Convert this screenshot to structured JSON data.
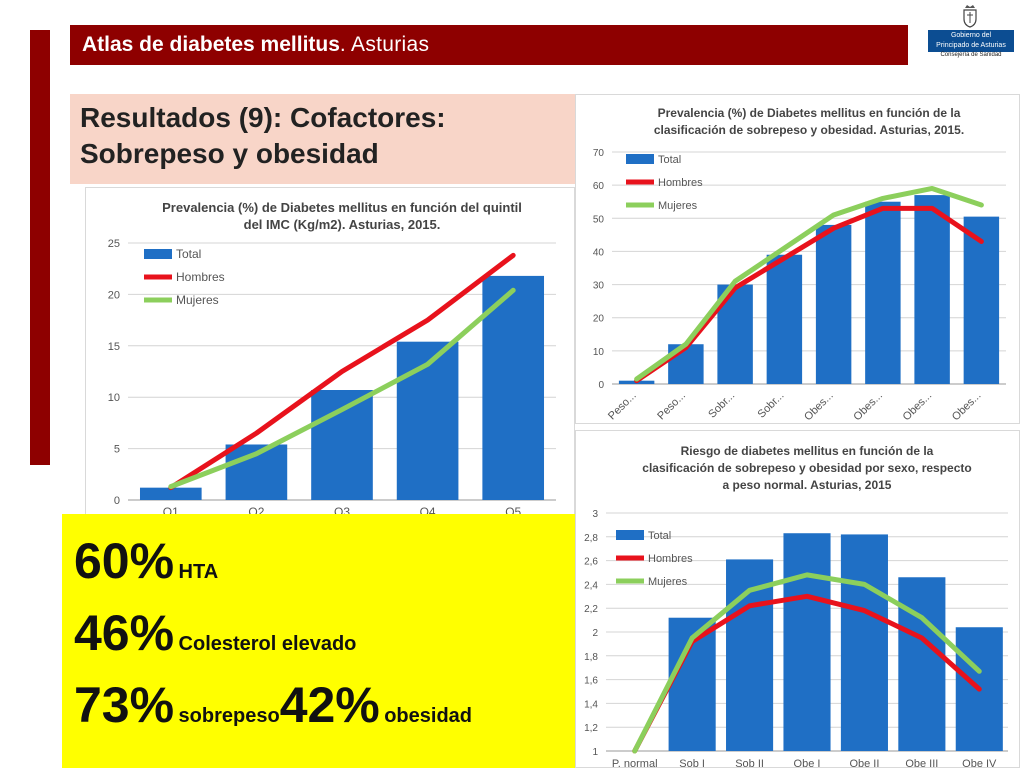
{
  "header": {
    "title_bold": "Atlas de diabetes mellitus",
    "title_rest": ". Asturias"
  },
  "logo": {
    "line1": "Gobierno del",
    "line2": "Principado de Asturias",
    "line3": "Consejería de Sanidad",
    "shield_icon": "crown-shield-icon"
  },
  "slide_title": {
    "line1": "Resultados (9): Cofactores:",
    "line2": "Sobrepeso y obesidad"
  },
  "colors": {
    "brand_red": "#8e0000",
    "total_bar": "#1f6fc5",
    "hombres_line": "#e8121c",
    "mujeres_line": "#8ccf5c",
    "highlight": "#ffff00",
    "title_bg": "#f8d5c8"
  },
  "stats": {
    "row1": {
      "value": "60%",
      "label": "HTA"
    },
    "row2": {
      "value": "46%",
      "label": "Colesterol elevado"
    },
    "row3": {
      "value": "73%",
      "label": "sobrepeso",
      "value2": "42%",
      "label2": "obesidad"
    }
  },
  "chart_data": [
    {
      "type": "bar",
      "title": "Prevalencia (%) de Diabetes mellitus en función del quintil del IMC (Kg/m2). Asturias, 2015.",
      "categories": [
        "Q1",
        "Q2",
        "Q3",
        "Q4",
        "Q5"
      ],
      "ylim": [
        0,
        25
      ],
      "yticks": [
        0,
        5,
        10,
        15,
        20,
        25
      ],
      "legend_position": "top-left",
      "grid": true,
      "series": [
        {
          "name": "Total",
          "type": "bar",
          "values": [
            1.2,
            5.4,
            10.7,
            15.4,
            21.8
          ]
        },
        {
          "name": "Hombres",
          "type": "line",
          "values": [
            1.2,
            6.5,
            12.5,
            17.5,
            23.8
          ]
        },
        {
          "name": "Mujeres",
          "type": "line",
          "values": [
            1.3,
            4.5,
            8.8,
            13.2,
            20.4
          ]
        }
      ]
    },
    {
      "type": "bar",
      "title": "Prevalencia (%) de Diabetes mellitus en función de la clasificación de sobrepeso y obesidad. Asturias, 2015.",
      "categories": [
        "Peso...",
        "Peso...",
        "Sobr...",
        "Sobr...",
        "Obes...",
        "Obes...",
        "Obes...",
        "Obes..."
      ],
      "ylim": [
        0,
        70
      ],
      "yticks": [
        0,
        10,
        20,
        30,
        40,
        50,
        60,
        70
      ],
      "legend_position": "top-left",
      "grid": true,
      "series": [
        {
          "name": "Total",
          "type": "bar",
          "values": [
            1,
            12,
            30,
            39,
            48,
            55,
            57,
            50.5
          ]
        },
        {
          "name": "Hombres",
          "type": "line",
          "values": [
            1,
            11,
            29,
            38,
            47,
            53,
            53,
            43
          ]
        },
        {
          "name": "Mujeres",
          "type": "line",
          "values": [
            1.5,
            12,
            31,
            41,
            51,
            56,
            59,
            54
          ]
        }
      ]
    },
    {
      "type": "bar",
      "title": "Riesgo de diabetes mellitus en función de la clasificación de sobrepeso y obesidad por sexo, respecto a peso normal. Asturias, 2015",
      "categories": [
        "P. normal",
        "Sob I",
        "Sob II",
        "Obe I",
        "Obe II",
        "Obe III",
        "Obe IV"
      ],
      "ylim": [
        1,
        3
      ],
      "yticks": [
        "1",
        "1,2",
        "1,4",
        "1,6",
        "1,8",
        "2",
        "2,2",
        "2,4",
        "2,6",
        "2,8",
        "3"
      ],
      "legend_position": "top-left",
      "grid": true,
      "series": [
        {
          "name": "Total",
          "type": "bar",
          "values": [
            1,
            2.12,
            2.61,
            2.83,
            2.82,
            2.46,
            2.04
          ]
        },
        {
          "name": "Hombres",
          "type": "line",
          "values": [
            1,
            1.92,
            2.22,
            2.3,
            2.18,
            1.95,
            1.52
          ]
        },
        {
          "name": "Mujeres",
          "type": "line",
          "values": [
            1,
            1.95,
            2.35,
            2.48,
            2.4,
            2.12,
            1.67
          ]
        }
      ]
    }
  ]
}
